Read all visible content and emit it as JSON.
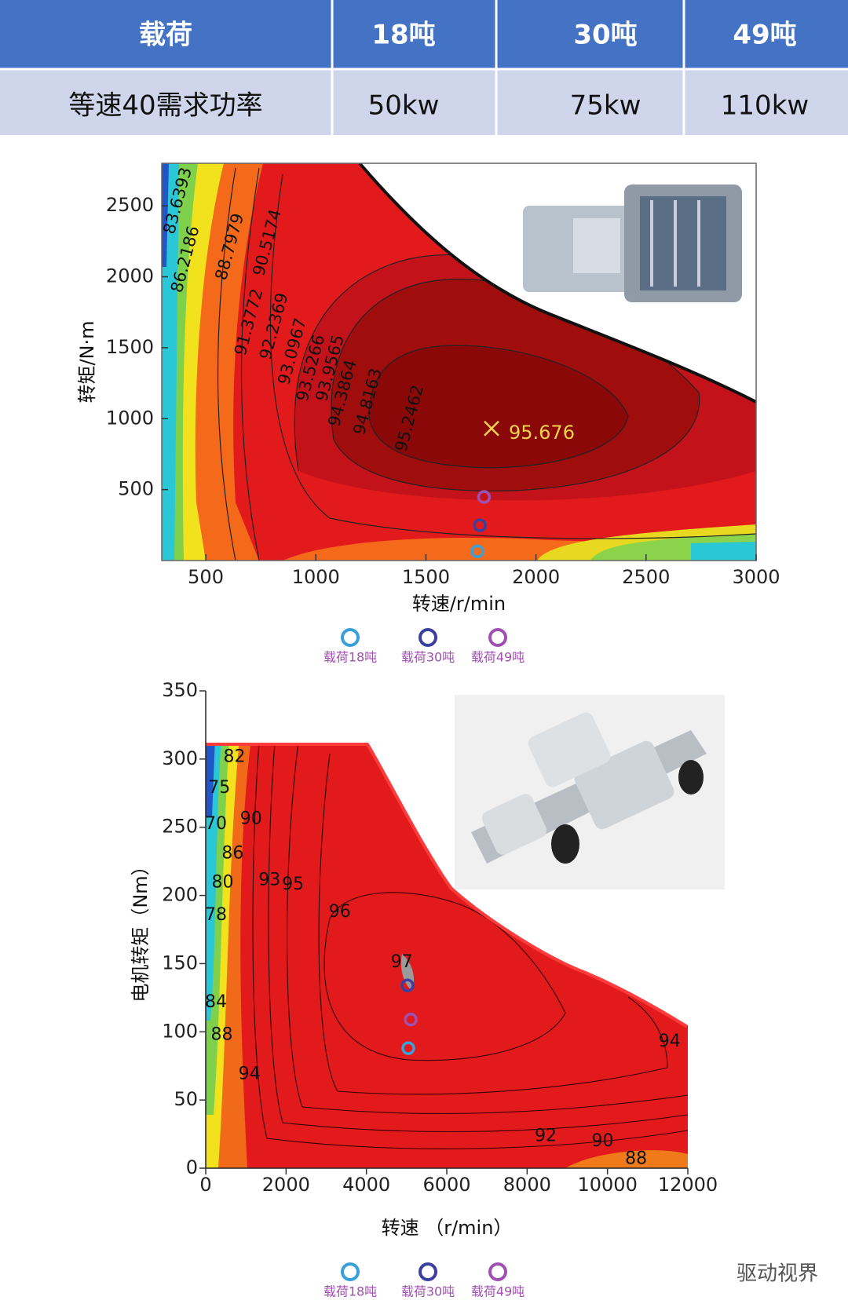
{
  "table": {
    "header": [
      "载荷",
      "18吨",
      "30吨",
      "49吨"
    ],
    "rows": [
      [
        "等速40需求功率",
        "50kw",
        "75kw",
        "110kw"
      ]
    ]
  },
  "chart_data": [
    {
      "type": "contour",
      "x_label": "转速/r/min",
      "y_label": "转矩/N·m",
      "xlim": [
        300,
        3000
      ],
      "ylim": [
        0,
        2800
      ],
      "xticks": [
        500,
        1000,
        1500,
        2000,
        2500,
        3000
      ],
      "yticks": [
        500,
        1000,
        1500,
        2000,
        2500
      ],
      "contour_labels": [
        "83.6393",
        "86.2186",
        "88.7979",
        "90.5174",
        "91.3772",
        "92.2369",
        "93.0967",
        "93.5266",
        "93.9565",
        "94.3864",
        "94.8163",
        "95.2462"
      ],
      "peak": {
        "label": "95.676",
        "x": 1798,
        "y": 931
      },
      "points": [
        {
          "name": "载荷18吨",
          "color": "#3aa0d8",
          "x": 1734,
          "y": 65
        },
        {
          "name": "载荷30吨",
          "color": "#3b3fa0",
          "x": 1745,
          "y": 248
        },
        {
          "name": "载荷49吨",
          "color": "#a050b0",
          "x": 1764,
          "y": 448
        }
      ]
    },
    {
      "type": "contour",
      "x_label": "转速 （r/min）",
      "y_label": "电机转矩（Nm）",
      "xlim": [
        0,
        12000
      ],
      "ylim": [
        0,
        350
      ],
      "xticks": [
        0,
        2000,
        4000,
        6000,
        8000,
        10000,
        12000
      ],
      "yticks": [
        0,
        50,
        100,
        150,
        200,
        250,
        300,
        350
      ],
      "contour_labels": [
        82,
        75,
        70,
        90,
        86,
        80,
        93,
        95,
        96,
        78,
        97,
        84,
        88,
        94,
        94,
        92,
        90,
        88
      ],
      "points": [
        {
          "name": "载荷18吨",
          "color": "#3aa0d8",
          "x": 5042,
          "y": 88
        },
        {
          "name": "载荷30吨",
          "color": "#3b3fa0",
          "x": 5021,
          "y": 134
        },
        {
          "name": "载荷49吨",
          "color": "#a050b0",
          "x": 5104,
          "y": 109
        }
      ]
    }
  ],
  "watermark": "驱动视界"
}
